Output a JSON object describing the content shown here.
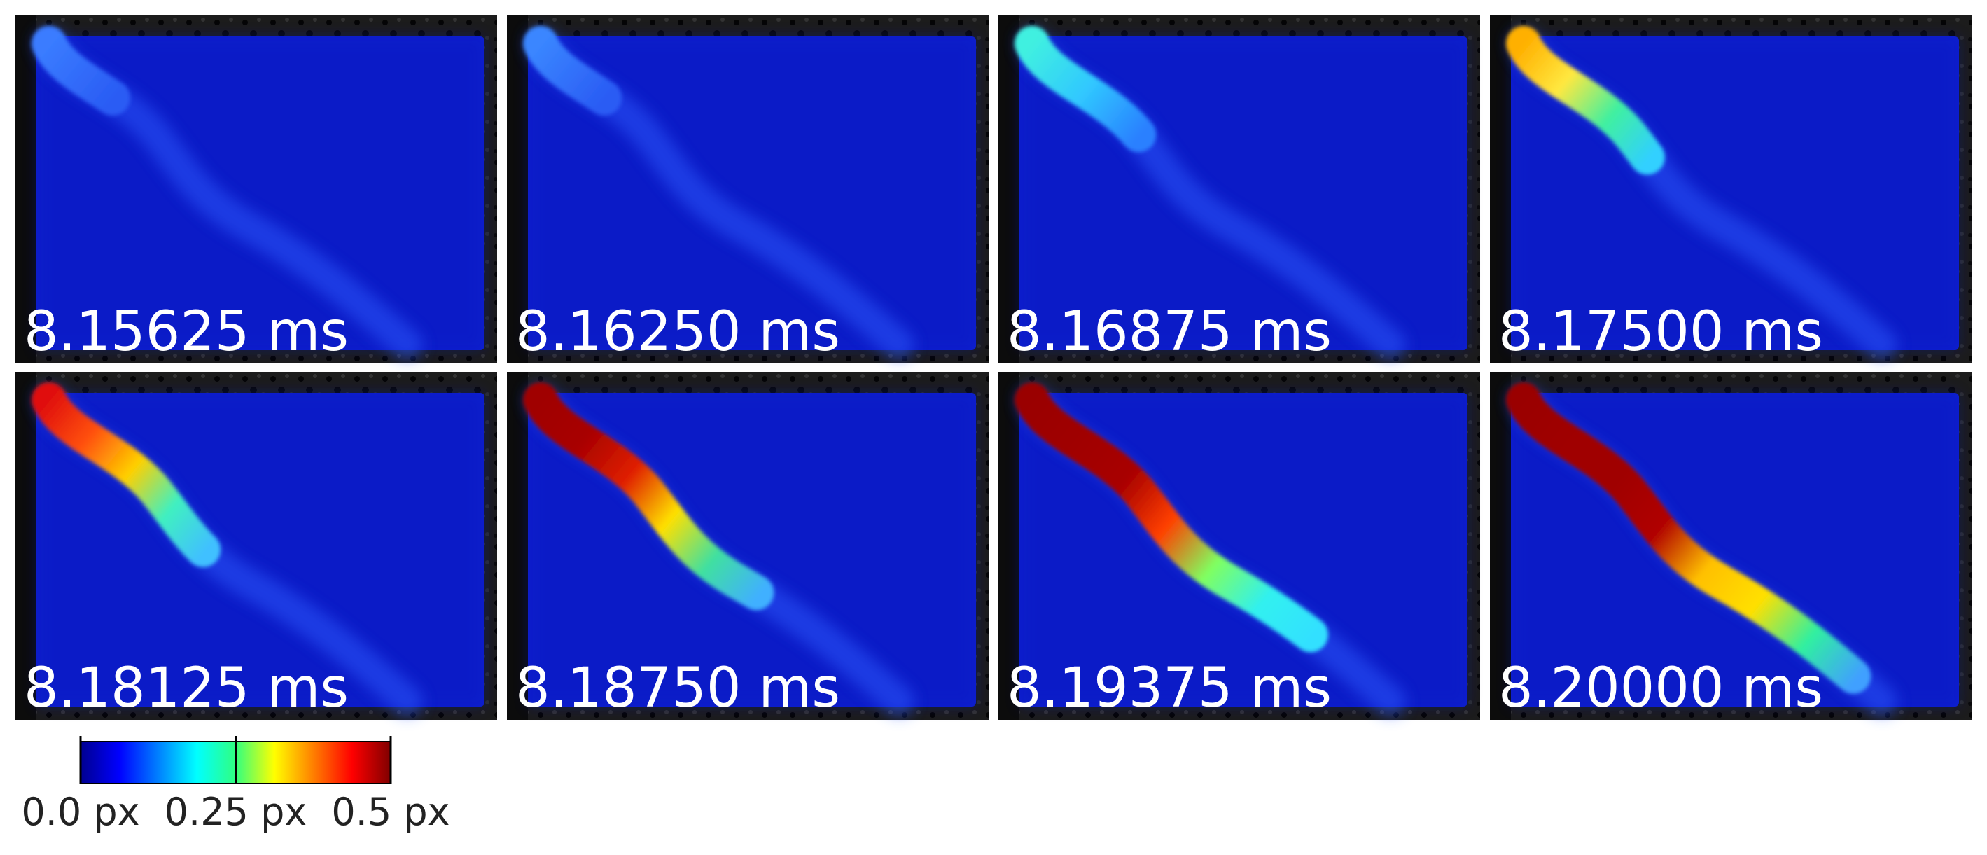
{
  "panels": [
    {
      "label": "8.15625 ms"
    },
    {
      "label": "8.16250 ms"
    },
    {
      "label": "8.16875 ms"
    },
    {
      "label": "8.17500 ms"
    },
    {
      "label": "8.18125 ms"
    },
    {
      "label": "8.18750 ms"
    },
    {
      "label": "8.19375 ms"
    },
    {
      "label": "8.20000 ms"
    }
  ],
  "colorbar": {
    "lim": [
      0,
      0.5
    ],
    "ticks": [
      {
        "value": 0,
        "label": "0.0 px"
      },
      {
        "value": 0.25,
        "label": "0.25 px"
      },
      {
        "value": 0.5,
        "label": "0.5 px"
      }
    ]
  }
}
